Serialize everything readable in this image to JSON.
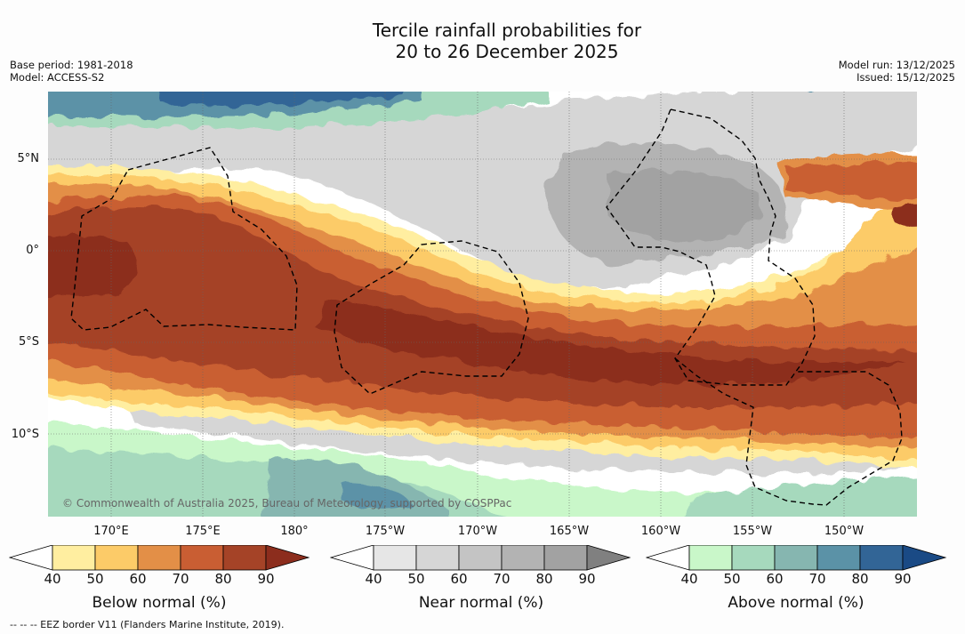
{
  "header": {
    "title_line1": "Tercile rainfall probabilities for",
    "title_line2": "20 to 26 December 2025",
    "base_period": "Base period: 1981-2018",
    "model": "Model: ACCESS-S2",
    "model_run": "Model run: 13/12/2025",
    "issued": "Issued: 15/12/2025"
  },
  "map": {
    "lat_labels": [
      "5°N",
      "0°",
      "5°S",
      "10°S"
    ],
    "lon_labels": [
      "170°E",
      "175°E",
      "180°",
      "175°W",
      "170°W",
      "165°W",
      "160°W",
      "155°W",
      "150°W"
    ],
    "copyright": "© Commonwealth of Australia 2025, Bureau of Meteorology, supported by COSPPac",
    "colors": {
      "below": [
        "#ffffff",
        "#ffeea0",
        "#fccb68",
        "#e38f47",
        "#c95e33",
        "#a54327",
        "#8c2d1d"
      ],
      "near": [
        "#ffffff",
        "#e6e6e6",
        "#d6d6d6",
        "#c4c4c4",
        "#b3b3b3",
        "#a2a2a2",
        "#808080"
      ],
      "above": [
        "#ffffff",
        "#c9f7c9",
        "#a6d9bd",
        "#86b6b0",
        "#5b92a7",
        "#326596",
        "#1a4a85"
      ]
    }
  },
  "colorbars": [
    {
      "name": "below",
      "title": "Below normal (%)",
      "ticks": [
        "40",
        "50",
        "60",
        "70",
        "80",
        "90"
      ]
    },
    {
      "name": "near",
      "title": "Near normal (%)",
      "ticks": [
        "40",
        "50",
        "60",
        "70",
        "80",
        "90"
      ]
    },
    {
      "name": "above",
      "title": "Above normal (%)",
      "ticks": [
        "40",
        "50",
        "60",
        "70",
        "80",
        "90"
      ]
    }
  ],
  "footnote": "--  --  -- EEZ border V11 (Flanders Marine Institute, 2019)."
}
